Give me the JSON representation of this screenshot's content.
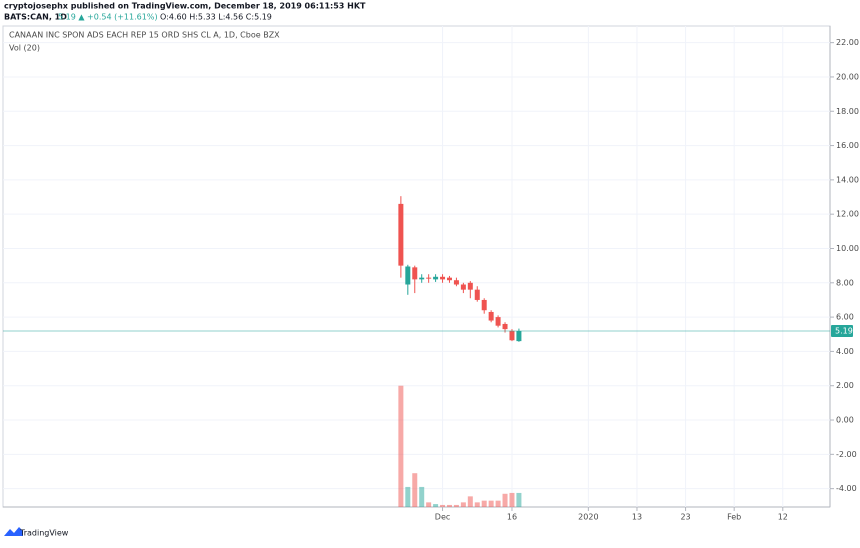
{
  "header": {
    "publisher": "cryptojosephx published on TradingView.com, December 18, 2019 06:11:53 HKT",
    "symbol": "BATS:CAN, 1D",
    "change": "5.19 ▲ +0.54 (+11.61%)",
    "ohlc": "O:4.60 H:5.33 L:4.56 C:5.19"
  },
  "footer": {
    "brand": "TradingView"
  },
  "chart_data": {
    "type": "candlestick",
    "title": "CANAAN INC SPON ADS EACH REP 15 ORD SHS CL A, 1D, Cboe BZX",
    "volume_label": "Vol (20)",
    "x": [
      0,
      1,
      2,
      3,
      4,
      5,
      6,
      7,
      8,
      9,
      10,
      11,
      12,
      13,
      14,
      15,
      16,
      17
    ],
    "open": [
      12.6,
      7.9,
      8.9,
      8.2,
      8.3,
      8.2,
      8.35,
      8.3,
      8.15,
      7.9,
      8.0,
      7.6,
      7.0,
      6.3,
      6.0,
      5.6,
      5.2,
      4.6
    ],
    "high": [
      13.05,
      9.05,
      9.0,
      8.5,
      8.5,
      8.5,
      8.5,
      8.4,
      8.3,
      8.0,
      8.1,
      7.8,
      7.1,
      6.4,
      6.1,
      5.7,
      5.3,
      5.33
    ],
    "low": [
      8.3,
      7.3,
      7.4,
      8.0,
      8.0,
      8.05,
      8.0,
      8.0,
      7.8,
      7.4,
      7.1,
      6.9,
      6.2,
      5.7,
      5.4,
      5.1,
      4.6,
      4.56
    ],
    "close": [
      9.0,
      8.95,
      8.2,
      8.3,
      8.25,
      8.35,
      8.2,
      8.15,
      7.9,
      7.6,
      7.6,
      7.0,
      6.4,
      5.8,
      5.5,
      5.3,
      4.65,
      5.19
    ],
    "volume": [
      2.0,
      -3.9,
      -3.1,
      -3.9,
      -4.8,
      -4.9,
      -4.95,
      -4.95,
      -4.95,
      -4.8,
      -4.45,
      -4.8,
      -4.7,
      -4.7,
      -4.7,
      -4.3,
      -4.25,
      -4.25
    ],
    "up_color": "#26a69a",
    "down_color": "#ef5350",
    "xlim": [
      -57.3,
      61.8
    ],
    "ylim": [
      -5.07,
      22.97
    ],
    "xticks": [
      {
        "value": 6,
        "label": "Dec"
      },
      16,
      {
        "value": 27,
        "label": "2020"
      },
      {
        "value": 34,
        "label": "13"
      },
      {
        "value": 41,
        "label": "23"
      },
      {
        "value": 48,
        "label": "Feb"
      },
      {
        "value": 55,
        "label": "12"
      }
    ],
    "yticks": [
      {
        "value": 22,
        "label": "22.00"
      },
      {
        "value": 20,
        "label": "20.00"
      },
      {
        "value": 18,
        "label": "18.00"
      },
      {
        "value": 16,
        "label": "16.00"
      },
      {
        "value": 14,
        "label": "14.00"
      },
      {
        "value": 12,
        "label": "12.00"
      },
      {
        "value": 10,
        "label": "10.00"
      },
      {
        "value": 8,
        "label": "8.00"
      },
      {
        "value": 6,
        "label": "6.00"
      },
      {
        "value": 4,
        "label": "4.00"
      },
      {
        "value": 2,
        "label": "2.00"
      },
      {
        "value": 0,
        "label": "0.00"
      },
      {
        "value": -2,
        "label": "-2.00"
      },
      {
        "value": -4,
        "label": "-4.00"
      }
    ],
    "grid": true
  }
}
